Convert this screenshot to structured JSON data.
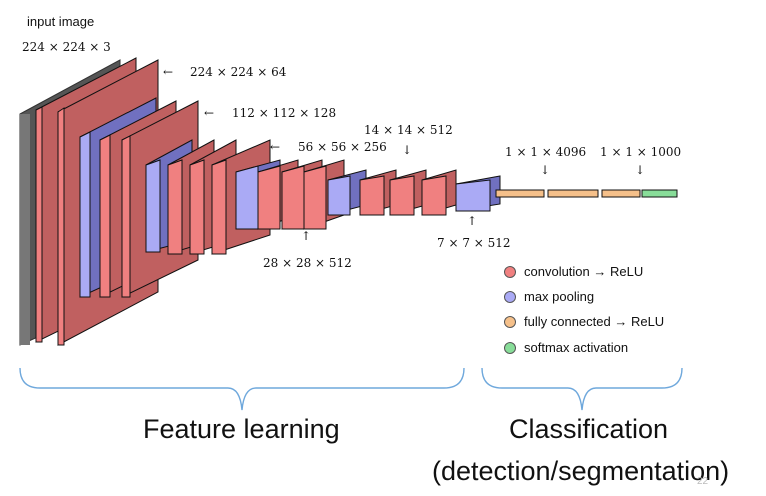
{
  "diagram": {
    "input_label": "input image",
    "input_dims": "224 × 224 × 3",
    "arrow_left": "←",
    "arrow_down": "↓",
    "arrow_up": "↑",
    "dims": {
      "conv1": "224 × 224 × 64",
      "conv2": "112 × 112 × 128",
      "conv3": "56 × 56 × 256",
      "conv4": "28 × 28 × 512",
      "conv5": "14 × 14 × 512",
      "pool5": "7 × 7 × 512",
      "fc": "1 × 1 × 4096",
      "softmax": "1 × 1 × 1000"
    },
    "colors": {
      "conv": "#f08080",
      "conv_side": "#c06060",
      "pool": "#aaaaf5",
      "pool_side": "#7070c0",
      "fc": "#f5c08a",
      "softmax": "#88dd99",
      "input_side": "#4a4a4a"
    }
  },
  "legend": [
    {
      "label": "convolution → ReLU",
      "color": "#f08080"
    },
    {
      "label": "max pooling",
      "color": "#aaaaf5"
    },
    {
      "label": "fully connected → ReLU",
      "color": "#f5c08a"
    },
    {
      "label": "softmax activation",
      "color": "#88dd99"
    }
  ],
  "sections": {
    "feature_learning": "Feature learning",
    "classification": "Classification",
    "classification_sub": "(detection/segmentation)"
  },
  "page_number": "22"
}
